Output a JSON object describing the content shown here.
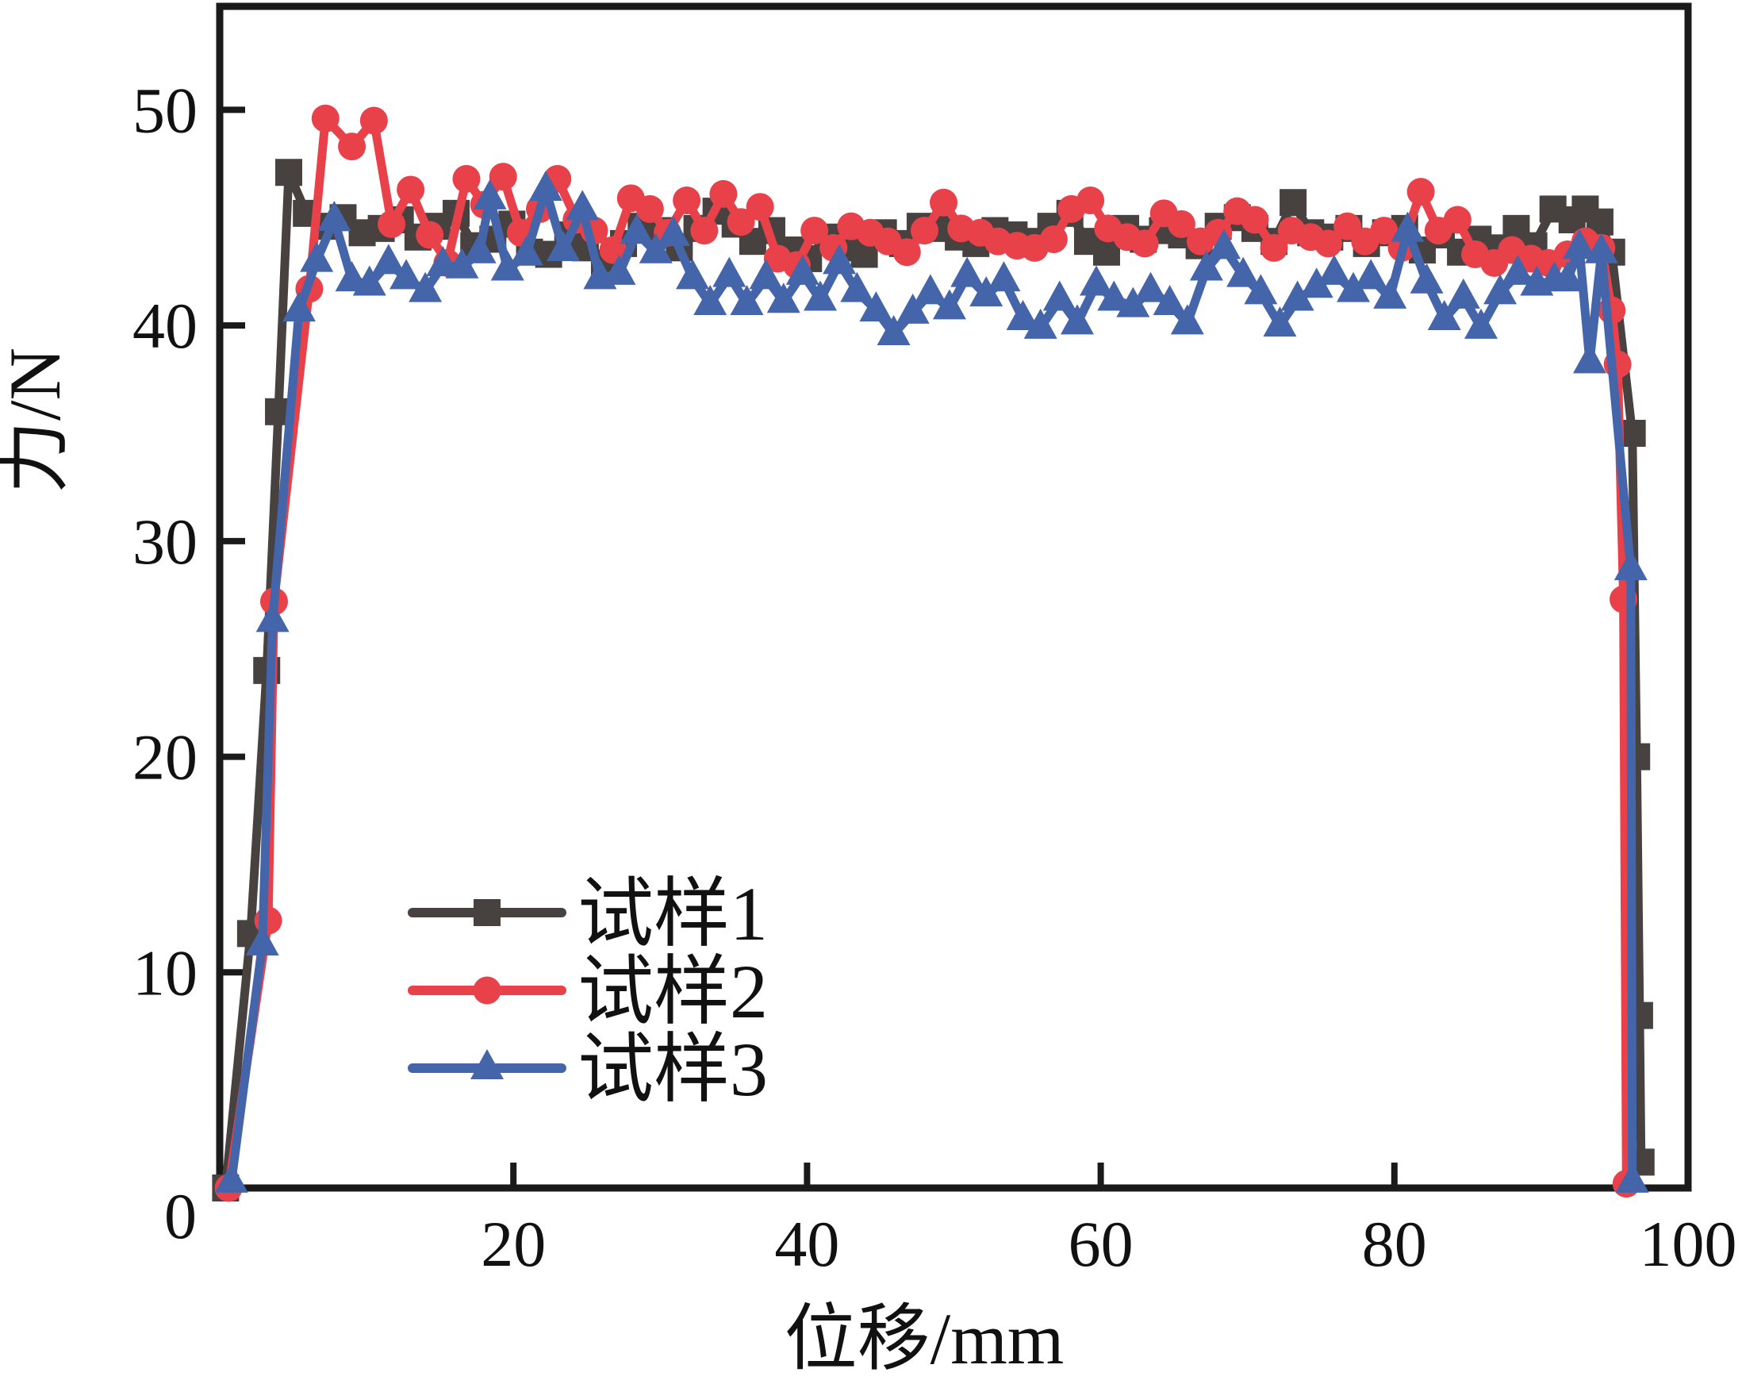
{
  "figure": {
    "background": "#ffffff",
    "frame_color": "#1a1a1a"
  },
  "chart_data": {
    "type": "line",
    "title": "",
    "xlabel": "位移/mm",
    "ylabel": "力/N",
    "xlim": [
      0,
      100
    ],
    "ylim": [
      0,
      54.8
    ],
    "grid": false,
    "legend_position": "inside lower-left",
    "origin_label": "0",
    "x_tick_values": [
      20,
      40,
      60,
      80,
      100
    ],
    "x_tick_labels": [
      "20",
      "40",
      "60",
      "80",
      "100"
    ],
    "y_tick_values": [
      10,
      20,
      30,
      40,
      50
    ],
    "y_tick_labels": [
      "10",
      "20",
      "30",
      "40",
      "50"
    ],
    "series": [
      {
        "name": "试样1",
        "color": "#474240",
        "marker": "square",
        "points": [
          [
            0.4,
            0
          ],
          [
            2.1,
            11.8
          ],
          [
            3.2,
            24.0
          ],
          [
            4.0,
            36.0
          ],
          [
            4.7,
            47.1
          ],
          [
            5.9,
            45.2
          ],
          [
            7.2,
            44.6
          ],
          [
            8.4,
            45.0
          ],
          [
            9.7,
            44.3
          ],
          [
            11.0,
            44.5
          ],
          [
            12.3,
            44.9
          ],
          [
            13.5,
            44.1
          ],
          [
            14.8,
            44.6
          ],
          [
            16.1,
            45.2
          ],
          [
            17.3,
            43.7
          ],
          [
            18.6,
            44.0
          ],
          [
            19.9,
            44.7
          ],
          [
            21.1,
            43.4
          ],
          [
            22.4,
            43.3
          ],
          [
            23.7,
            44.2
          ],
          [
            24.9,
            43.6
          ],
          [
            26.2,
            42.9
          ],
          [
            27.5,
            43.8
          ],
          [
            28.7,
            44.6
          ],
          [
            30.0,
            44.4
          ],
          [
            31.3,
            43.6
          ],
          [
            32.5,
            44.5
          ],
          [
            33.8,
            45.3
          ],
          [
            35.1,
            44.7
          ],
          [
            36.3,
            43.9
          ],
          [
            37.6,
            44.4
          ],
          [
            38.9,
            43.5
          ],
          [
            40.1,
            43.1
          ],
          [
            41.4,
            44.1
          ],
          [
            42.7,
            43.6
          ],
          [
            43.9,
            43.3
          ],
          [
            45.2,
            44.3
          ],
          [
            46.5,
            43.8
          ],
          [
            47.7,
            44.6
          ],
          [
            49.0,
            44.5
          ],
          [
            50.3,
            44.1
          ],
          [
            51.5,
            43.8
          ],
          [
            52.8,
            44.4
          ],
          [
            54.1,
            44.2
          ],
          [
            55.3,
            43.9
          ],
          [
            56.6,
            44.6
          ],
          [
            57.9,
            45.2
          ],
          [
            59.1,
            43.9
          ],
          [
            60.4,
            43.4
          ],
          [
            61.7,
            44.5
          ],
          [
            62.9,
            44.0
          ],
          [
            64.2,
            44.4
          ],
          [
            65.5,
            44.2
          ],
          [
            66.7,
            43.7
          ],
          [
            68.0,
            44.6
          ],
          [
            69.3,
            45.0
          ],
          [
            70.5,
            44.5
          ],
          [
            71.8,
            43.9
          ],
          [
            73.1,
            45.7
          ],
          [
            74.3,
            44.3
          ],
          [
            75.6,
            44.1
          ],
          [
            76.9,
            44.5
          ],
          [
            78.1,
            43.8
          ],
          [
            79.4,
            44.3
          ],
          [
            80.7,
            44.5
          ],
          [
            81.9,
            43.5
          ],
          [
            83.2,
            44.2
          ],
          [
            84.5,
            43.4
          ],
          [
            85.7,
            44.0
          ],
          [
            87.0,
            43.6
          ],
          [
            88.3,
            44.5
          ],
          [
            89.5,
            43.7
          ],
          [
            90.8,
            45.4
          ],
          [
            92.1,
            44.9
          ],
          [
            93.0,
            45.4
          ],
          [
            94.0,
            44.8
          ],
          [
            94.8,
            43.4
          ],
          [
            96.2,
            35.0
          ],
          [
            96.5,
            20.0
          ],
          [
            96.7,
            8.0
          ],
          [
            96.8,
            1.2
          ]
        ]
      },
      {
        "name": "试样2",
        "color": "#e8414a",
        "marker": "circle",
        "points": [
          [
            0.6,
            0
          ],
          [
            3.3,
            12.4
          ],
          [
            3.7,
            27.2
          ],
          [
            6.1,
            41.7
          ],
          [
            7.2,
            49.6
          ],
          [
            9.0,
            48.3
          ],
          [
            10.5,
            49.5
          ],
          [
            11.7,
            44.7
          ],
          [
            13.0,
            46.3
          ],
          [
            14.3,
            44.2
          ],
          [
            15.5,
            42.9
          ],
          [
            16.8,
            46.8
          ],
          [
            18.0,
            45.6
          ],
          [
            19.3,
            46.9
          ],
          [
            20.5,
            44.3
          ],
          [
            21.8,
            45.4
          ],
          [
            23.0,
            46.8
          ],
          [
            24.3,
            44.9
          ],
          [
            25.5,
            44.4
          ],
          [
            26.8,
            43.5
          ],
          [
            28.0,
            45.9
          ],
          [
            29.3,
            45.4
          ],
          [
            30.5,
            44.3
          ],
          [
            31.8,
            45.8
          ],
          [
            33.0,
            44.4
          ],
          [
            34.3,
            46.1
          ],
          [
            35.5,
            44.8
          ],
          [
            36.8,
            45.5
          ],
          [
            38.0,
            43.1
          ],
          [
            39.3,
            42.8
          ],
          [
            40.5,
            44.4
          ],
          [
            41.8,
            43.6
          ],
          [
            43.0,
            44.6
          ],
          [
            44.3,
            44.3
          ],
          [
            45.5,
            43.9
          ],
          [
            46.8,
            43.4
          ],
          [
            48.0,
            44.4
          ],
          [
            49.3,
            45.7
          ],
          [
            50.5,
            44.5
          ],
          [
            51.8,
            44.3
          ],
          [
            53.0,
            43.9
          ],
          [
            54.3,
            43.7
          ],
          [
            55.5,
            43.6
          ],
          [
            56.8,
            44.0
          ],
          [
            58.0,
            45.4
          ],
          [
            59.3,
            45.8
          ],
          [
            60.5,
            44.5
          ],
          [
            61.8,
            44.1
          ],
          [
            63.0,
            43.8
          ],
          [
            64.3,
            45.2
          ],
          [
            65.5,
            44.7
          ],
          [
            66.8,
            43.9
          ],
          [
            68.0,
            44.3
          ],
          [
            69.3,
            45.3
          ],
          [
            70.5,
            44.9
          ],
          [
            71.8,
            43.6
          ],
          [
            73.0,
            44.4
          ],
          [
            74.3,
            44.1
          ],
          [
            75.5,
            43.8
          ],
          [
            76.8,
            44.6
          ],
          [
            78.0,
            43.9
          ],
          [
            79.3,
            44.4
          ],
          [
            80.5,
            43.6
          ],
          [
            81.8,
            46.2
          ],
          [
            83.0,
            44.4
          ],
          [
            84.3,
            44.9
          ],
          [
            85.5,
            43.3
          ],
          [
            86.8,
            42.9
          ],
          [
            88.0,
            43.5
          ],
          [
            89.3,
            43.1
          ],
          [
            90.5,
            42.9
          ],
          [
            91.8,
            43.3
          ],
          [
            93.0,
            43.9
          ],
          [
            94.1,
            43.6
          ],
          [
            94.8,
            40.7
          ],
          [
            95.2,
            38.2
          ],
          [
            95.6,
            27.3
          ],
          [
            95.8,
            0.2
          ]
        ]
      },
      {
        "name": "试样3",
        "color": "#4565aa",
        "marker": "triangle",
        "points": [
          [
            0.8,
            0.3
          ],
          [
            2.9,
            11.3
          ],
          [
            3.6,
            26.3
          ],
          [
            5.4,
            40.7
          ],
          [
            6.6,
            43.0
          ],
          [
            7.8,
            44.9
          ],
          [
            9.0,
            42.1
          ],
          [
            10.2,
            41.9
          ],
          [
            11.5,
            42.9
          ],
          [
            12.7,
            42.2
          ],
          [
            14.0,
            41.6
          ],
          [
            15.2,
            42.8
          ],
          [
            16.5,
            42.7
          ],
          [
            17.7,
            43.4
          ],
          [
            18.4,
            45.9
          ],
          [
            19.6,
            42.6
          ],
          [
            20.9,
            43.3
          ],
          [
            22.2,
            46.3
          ],
          [
            23.4,
            43.5
          ],
          [
            24.7,
            45.4
          ],
          [
            25.9,
            42.2
          ],
          [
            27.2,
            42.4
          ],
          [
            28.4,
            44.3
          ],
          [
            29.7,
            43.4
          ],
          [
            30.9,
            44.2
          ],
          [
            32.2,
            42.2
          ],
          [
            33.4,
            41.0
          ],
          [
            34.7,
            42.3
          ],
          [
            35.9,
            41.0
          ],
          [
            37.2,
            42.2
          ],
          [
            38.4,
            41.1
          ],
          [
            39.7,
            42.4
          ],
          [
            40.9,
            41.2
          ],
          [
            42.2,
            42.9
          ],
          [
            43.4,
            41.6
          ],
          [
            44.7,
            40.7
          ],
          [
            45.9,
            39.6
          ],
          [
            47.2,
            40.6
          ],
          [
            48.4,
            41.5
          ],
          [
            49.7,
            40.8
          ],
          [
            50.9,
            42.3
          ],
          [
            52.2,
            41.4
          ],
          [
            53.4,
            42.1
          ],
          [
            54.7,
            40.3
          ],
          [
            55.9,
            39.9
          ],
          [
            57.2,
            41.2
          ],
          [
            58.4,
            40.1
          ],
          [
            59.7,
            41.9
          ],
          [
            60.9,
            41.2
          ],
          [
            62.2,
            40.9
          ],
          [
            63.4,
            41.6
          ],
          [
            64.7,
            41.0
          ],
          [
            65.9,
            40.1
          ],
          [
            67.2,
            42.6
          ],
          [
            68.4,
            43.6
          ],
          [
            69.7,
            42.3
          ],
          [
            70.9,
            41.5
          ],
          [
            72.2,
            40.0
          ],
          [
            73.4,
            41.2
          ],
          [
            74.7,
            41.8
          ],
          [
            75.9,
            42.4
          ],
          [
            77.2,
            41.6
          ],
          [
            78.4,
            42.2
          ],
          [
            79.7,
            41.3
          ],
          [
            80.9,
            44.4
          ],
          [
            82.2,
            42.0
          ],
          [
            83.4,
            40.3
          ],
          [
            84.7,
            41.3
          ],
          [
            85.9,
            39.9
          ],
          [
            87.2,
            41.5
          ],
          [
            88.4,
            42.4
          ],
          [
            89.7,
            41.9
          ],
          [
            90.9,
            42.1
          ],
          [
            91.8,
            42.1
          ],
          [
            92.6,
            43.6
          ],
          [
            93.3,
            38.3
          ],
          [
            94.1,
            43.4
          ],
          [
            96.1,
            28.7
          ],
          [
            96.2,
            0.3
          ]
        ]
      }
    ]
  }
}
